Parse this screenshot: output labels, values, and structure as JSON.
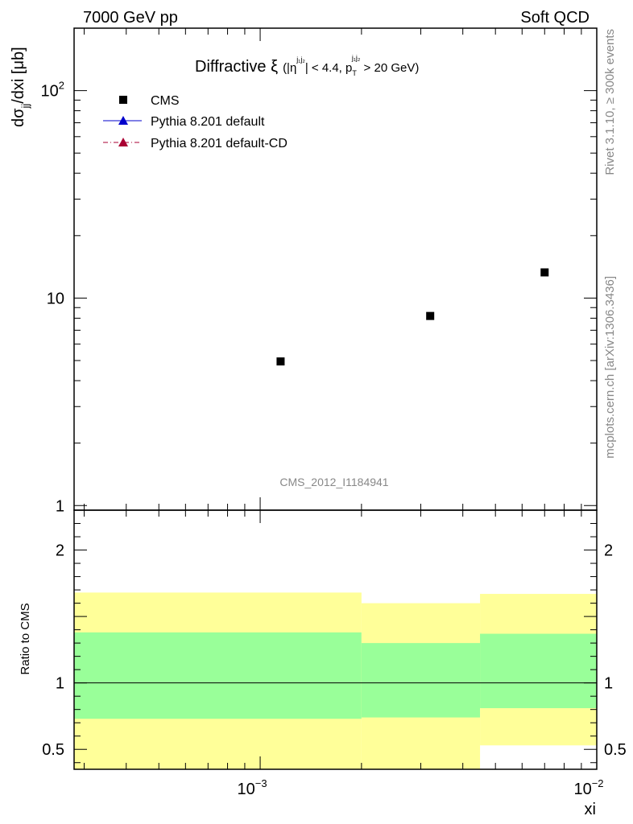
{
  "header": {
    "left": "7000 GeV pp",
    "right": "Soft QCD"
  },
  "side_labels": {
    "rivet": "Rivet 3.1.10, ≥ 300k events",
    "mcplots": "mcplots.cern.ch [arXiv:1306.3436]"
  },
  "watermark": "CMS_2012_I1184941",
  "chart_data": {
    "type": "scatter",
    "title": {
      "main": "Diffractive ξ",
      "cut_open": "(|η",
      "eta_sup": "j₁j₂",
      "cut_mid": "| < 4.4, p",
      "pt_sub": "T",
      "pt_sup": "j₁j₂",
      "cut_close": " > 20 GeV)"
    },
    "ylabel": {
      "d": "dσ",
      "sub": "jj",
      "rest": "/dxi [μb]"
    },
    "xlabel": "xi",
    "x_scale": "log",
    "y_scale": "log",
    "xlim": [
      0.00028,
      0.01
    ],
    "ylim": [
      0.95,
      200
    ],
    "x_ticks": [
      {
        "value": 0.001,
        "mantissa": "10",
        "exp": "−3"
      },
      {
        "value": 0.01,
        "mantissa": "10",
        "exp": "−2"
      }
    ],
    "y_ticks": [
      {
        "value": 1,
        "label": "1"
      },
      {
        "value": 10,
        "label": "10"
      },
      {
        "value": 100,
        "mantissa": "10",
        "exp": "2"
      }
    ],
    "legend": {
      "position": "top-left",
      "entries": [
        {
          "label": "CMS",
          "marker": "square",
          "color": "#000000"
        },
        {
          "label": "Pythia 8.201 default",
          "marker": "triangle",
          "color": "#0000cc",
          "line": "solid"
        },
        {
          "label": "Pythia 8.201 default-CD",
          "marker": "triangle",
          "color": "#aa0033",
          "line": "dashdot"
        }
      ]
    },
    "series": [
      {
        "name": "CMS",
        "points": [
          {
            "x": 0.00115,
            "y": 4.95
          },
          {
            "x": 0.0032,
            "y": 8.2
          },
          {
            "x": 0.007,
            "y": 13.3
          }
        ]
      }
    ],
    "ratio": {
      "ylabel": "Ratio to CMS",
      "ylim": [
        0.35,
        2.3
      ],
      "y_ticks": [
        {
          "value": 0.5,
          "label": "0.5"
        },
        {
          "value": 1,
          "label": "1"
        },
        {
          "value": 2,
          "label": "2"
        }
      ],
      "bands": [
        {
          "x_lo": 0.00028,
          "x_hi": 0.002,
          "inner": [
            0.73,
            1.38
          ],
          "outer": [
            0.35,
            1.68
          ]
        },
        {
          "x_lo": 0.002,
          "x_hi": 0.0045,
          "inner": [
            0.74,
            1.3
          ],
          "outer": [
            0.35,
            1.6
          ]
        },
        {
          "x_lo": 0.0045,
          "x_hi": 0.01,
          "inner": [
            0.81,
            1.37
          ],
          "outer": [
            0.53,
            1.67
          ]
        }
      ],
      "colors": {
        "inner": "#99ff99",
        "outer": "#ffff99"
      }
    }
  }
}
